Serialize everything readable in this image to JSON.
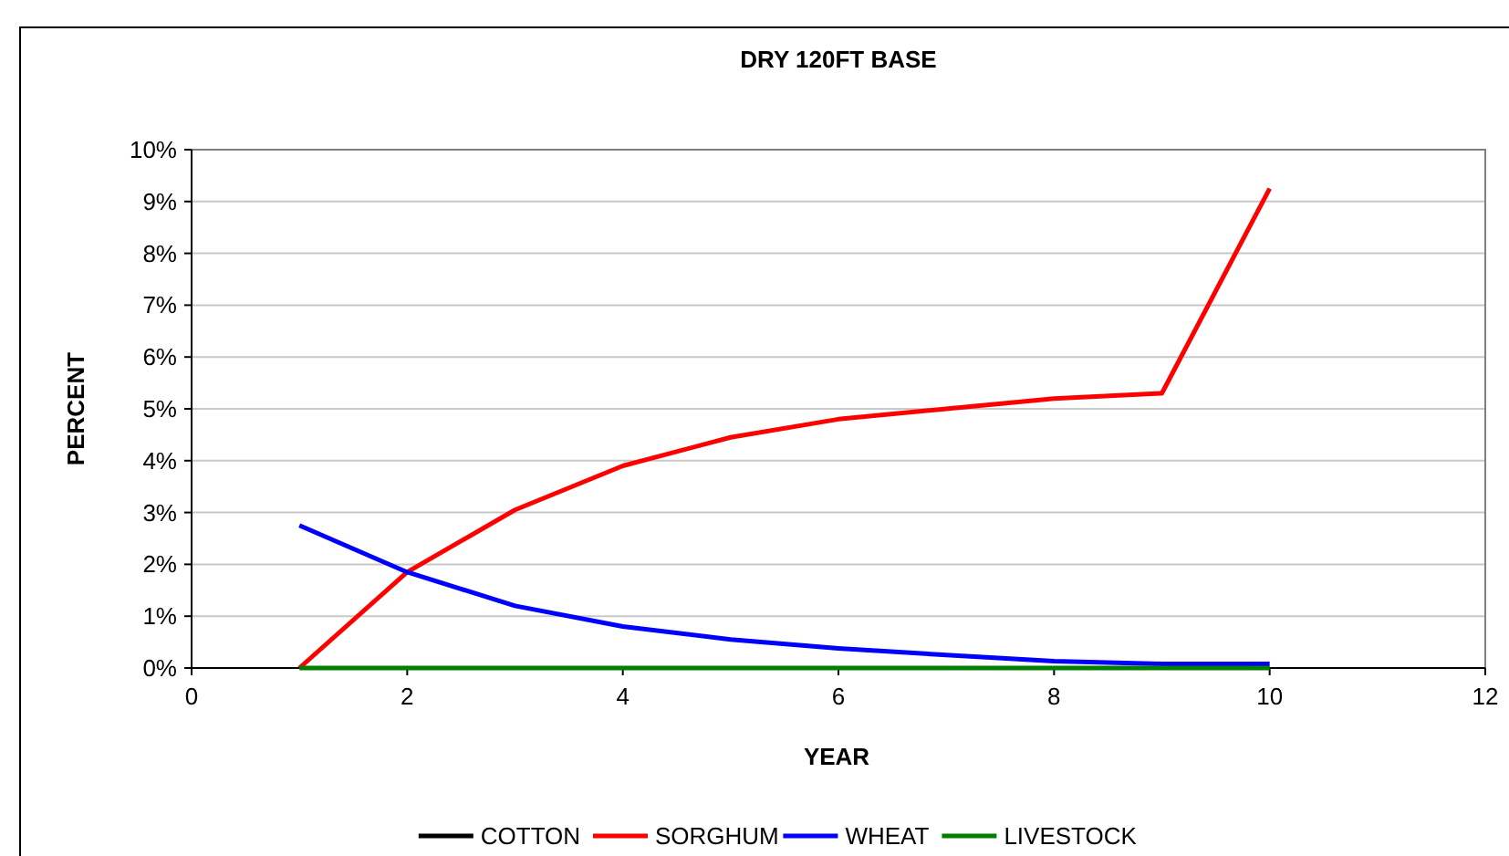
{
  "chart_data": {
    "type": "line",
    "title": "DRY 120FT BASE",
    "xlabel": "YEAR",
    "ylabel": "PERCENT",
    "x": [
      1,
      2,
      3,
      4,
      5,
      6,
      7,
      8,
      9,
      10
    ],
    "series": [
      {
        "name": "COTTON",
        "color": "#000000",
        "values": [
          null,
          null,
          null,
          null,
          null,
          null,
          null,
          null,
          null,
          null
        ]
      },
      {
        "name": "SORGHUM",
        "color": "#ff0000",
        "values": [
          0,
          1.85,
          3.05,
          3.9,
          4.45,
          4.8,
          5.0,
          5.2,
          5.3,
          9.25
        ]
      },
      {
        "name": "WHEAT",
        "color": "#0000ff",
        "values": [
          2.75,
          1.85,
          1.2,
          0.8,
          0.55,
          0.38,
          0.25,
          0.13,
          0.08,
          0.08
        ]
      },
      {
        "name": "LIVESTOCK",
        "color": "#008000",
        "values": [
          0,
          0,
          0,
          0,
          0,
          0,
          0,
          0,
          0,
          0
        ]
      }
    ],
    "xlim": [
      0,
      12
    ],
    "xticks": [
      0,
      2,
      4,
      6,
      8,
      10,
      12
    ],
    "ylim": [
      0,
      10
    ],
    "yticks": [
      {
        "value": 0,
        "label": "0%"
      },
      {
        "value": 1,
        "label": "1%"
      },
      {
        "value": 2,
        "label": "2%"
      },
      {
        "value": 3,
        "label": "3%"
      },
      {
        "value": 4,
        "label": "4%"
      },
      {
        "value": 5,
        "label": "5%"
      },
      {
        "value": 6,
        "label": "6%"
      },
      {
        "value": 7,
        "label": "7%"
      },
      {
        "value": 8,
        "label": "8%"
      },
      {
        "value": 9,
        "label": "9%"
      },
      {
        "value": 10,
        "label": "10%"
      }
    ],
    "grid": "y",
    "legend": "bottom",
    "marker": "none",
    "line_style": "solid"
  }
}
